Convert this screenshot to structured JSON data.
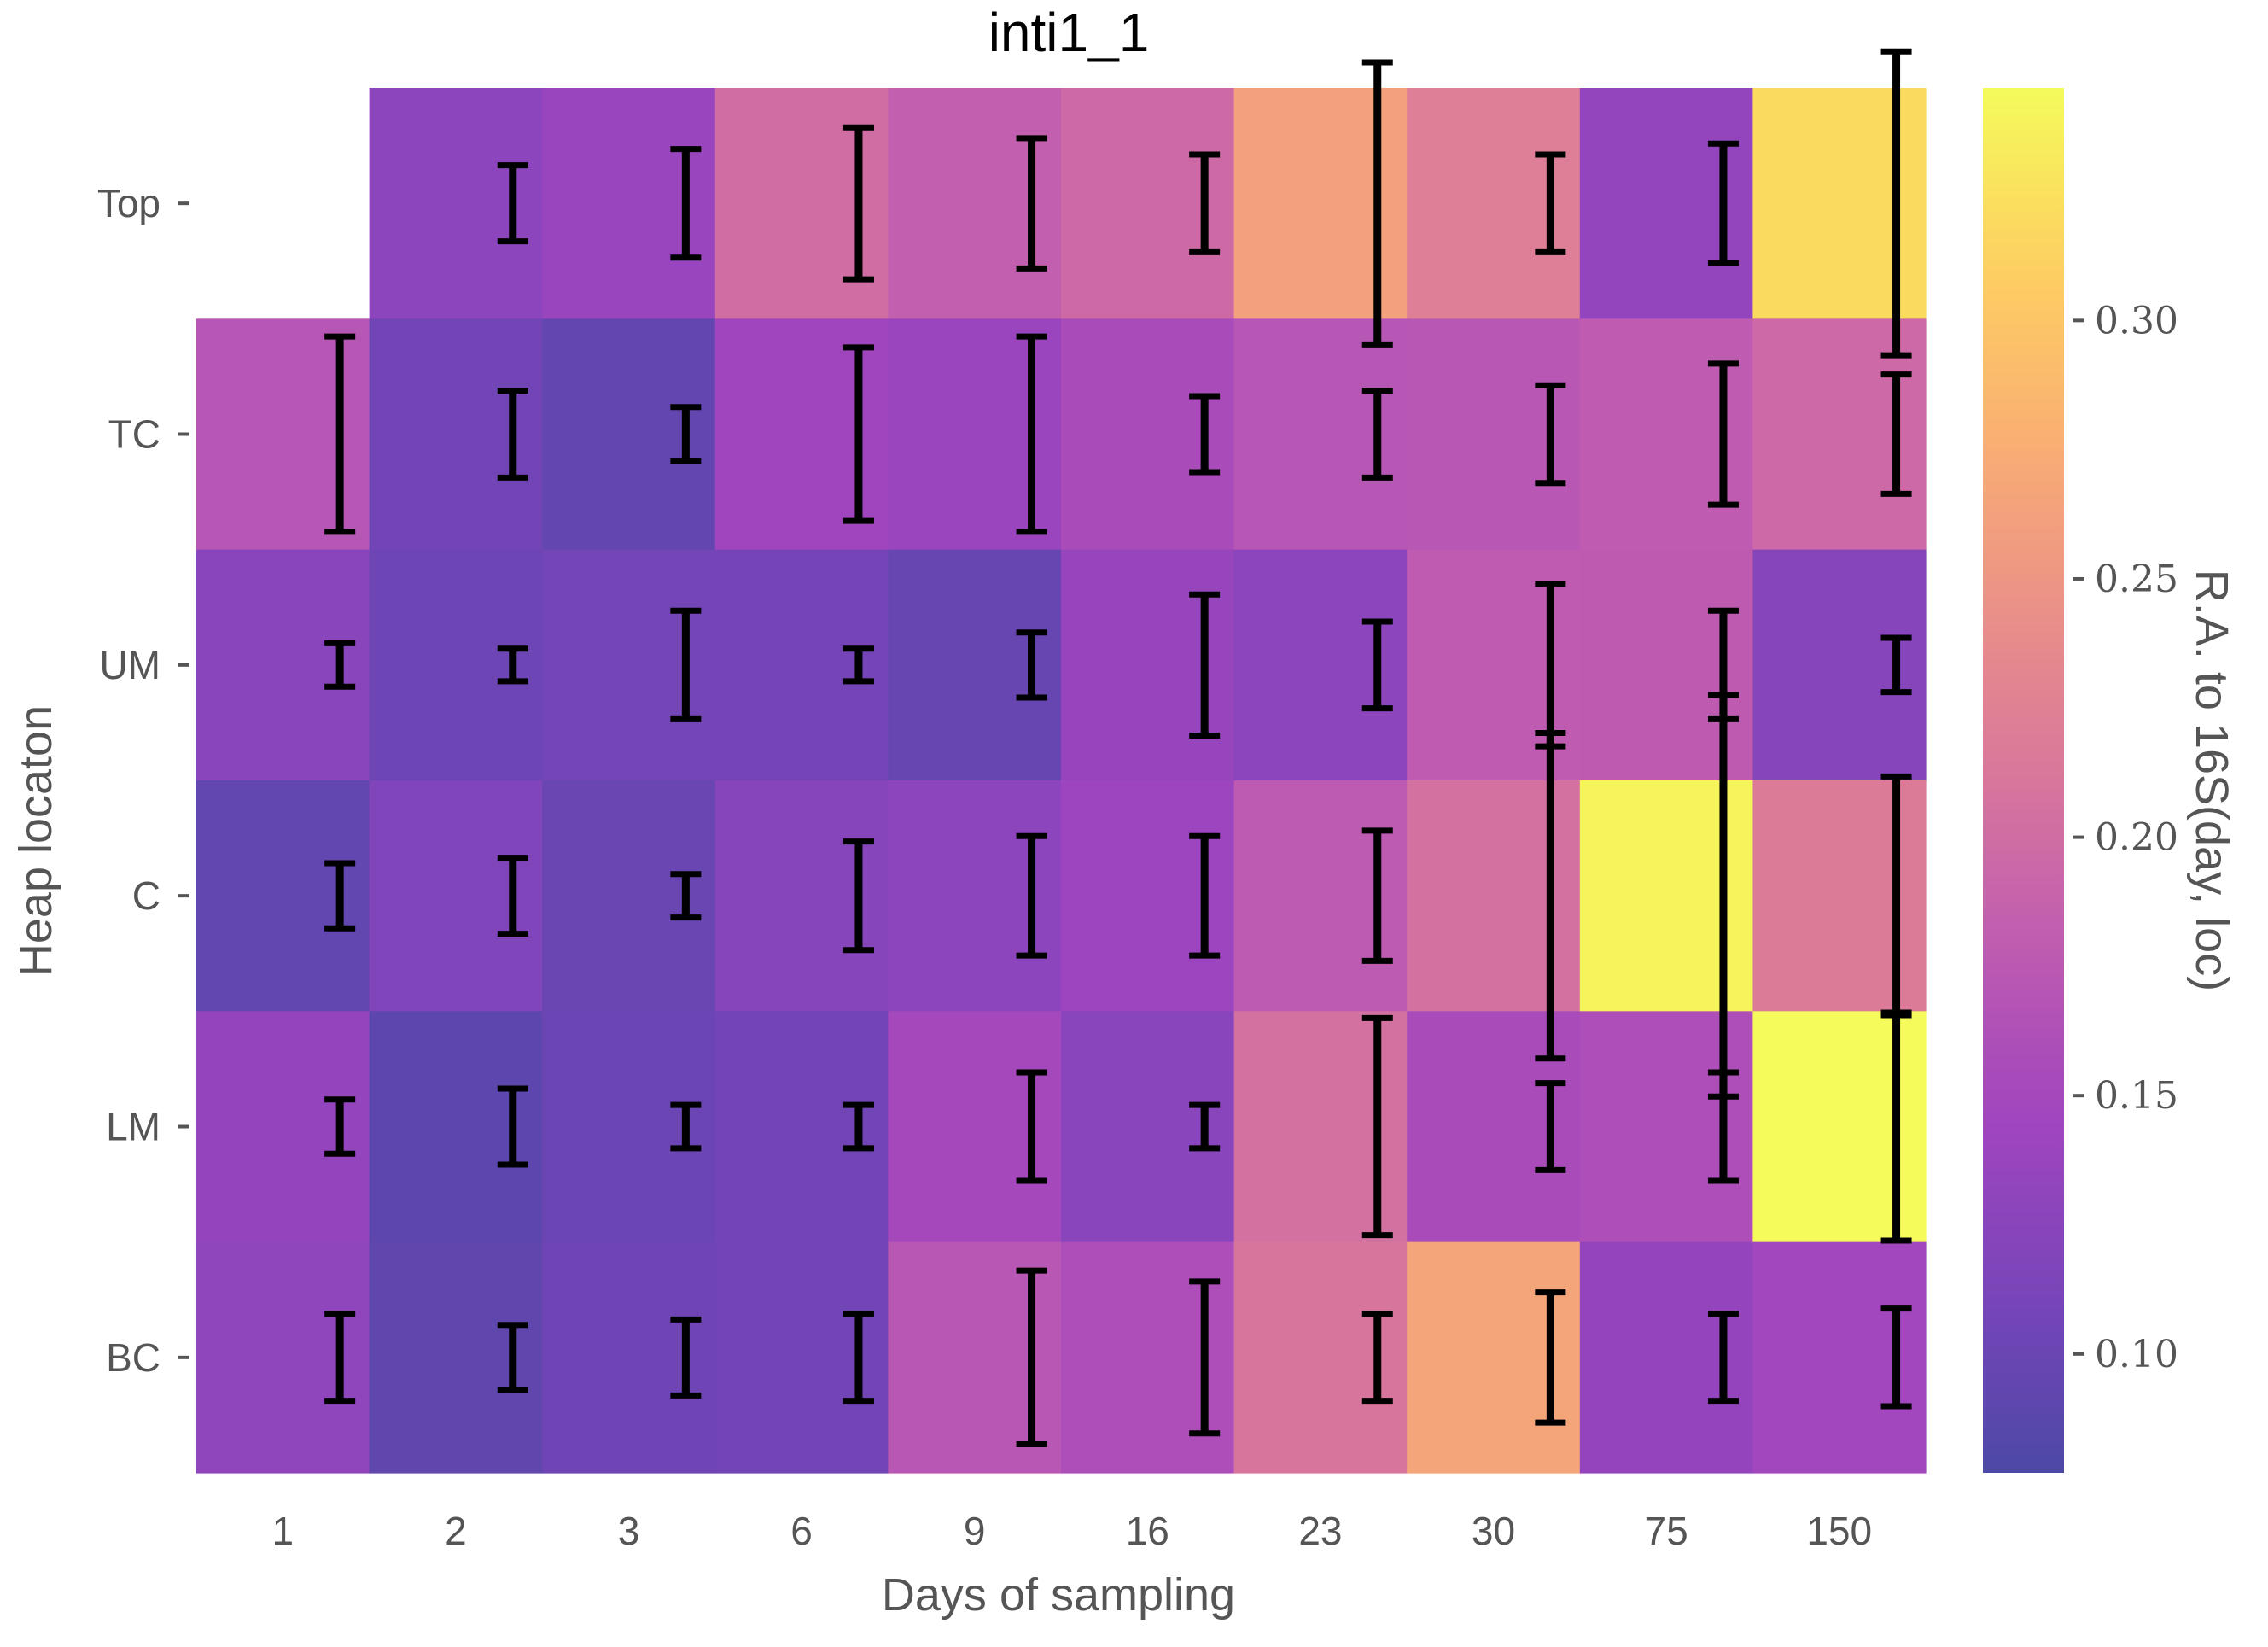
{
  "chart_data": {
    "type": "heatmap",
    "title": "inti1_1",
    "xlabel": "Days of sampling",
    "ylabel": "Heap locaton",
    "x_categories": [
      "1",
      "2",
      "3",
      "6",
      "9",
      "16",
      "23",
      "30",
      "75",
      "150"
    ],
    "y_categories": [
      "Top",
      "TC",
      "UM",
      "C",
      "LM",
      "BC"
    ],
    "values": [
      [
        null,
        0.128,
        0.138,
        0.2,
        0.183,
        0.197,
        0.262,
        0.22,
        0.133,
        0.32
      ],
      [
        0.17,
        0.105,
        0.095,
        0.145,
        0.14,
        0.155,
        0.17,
        0.172,
        0.18,
        0.195
      ],
      [
        0.125,
        0.103,
        0.107,
        0.108,
        0.098,
        0.137,
        0.128,
        0.18,
        0.178,
        0.123
      ],
      [
        0.094,
        0.117,
        0.099,
        0.122,
        0.127,
        0.142,
        0.177,
        0.205,
        0.34,
        0.217
      ],
      [
        0.135,
        0.09,
        0.102,
        0.106,
        0.15,
        0.125,
        0.205,
        0.155,
        0.16,
        0.345
      ],
      [
        0.13,
        0.092,
        0.104,
        0.106,
        0.172,
        0.16,
        0.21,
        0.267,
        0.135,
        0.147
      ]
    ],
    "error_bars": [
      [
        null,
        0.007,
        0.01,
        0.014,
        0.012,
        0.009,
        0.026,
        0.009,
        0.011,
        0.028
      ],
      [
        0.018,
        0.008,
        0.005,
        0.016,
        0.018,
        0.007,
        0.008,
        0.009,
        0.013,
        0.011
      ],
      [
        0.004,
        0.003,
        0.01,
        0.003,
        0.006,
        0.013,
        0.008,
        0.015,
        0.01,
        0.005
      ],
      [
        0.006,
        0.007,
        0.004,
        0.01,
        0.011,
        0.011,
        0.012,
        0.03,
        0.037,
        0.022
      ],
      [
        0.005,
        0.007,
        0.004,
        0.004,
        0.01,
        0.004,
        0.02,
        0.008,
        0.01,
        0.021
      ],
      [
        0.008,
        0.006,
        0.007,
        0.008,
        0.016,
        0.014,
        0.008,
        0.012,
        0.008,
        0.009
      ]
    ],
    "colorbar": {
      "label": "R.A. to 16S(day, loc)",
      "colormap": "plasma",
      "vmin": 0.077,
      "vmax": 0.345,
      "ticks": [
        0.1,
        0.15,
        0.2,
        0.25,
        0.3
      ],
      "tick_labels": [
        "0.10",
        "0.15",
        "0.20",
        "0.25",
        "0.30"
      ]
    },
    "grid": false
  }
}
